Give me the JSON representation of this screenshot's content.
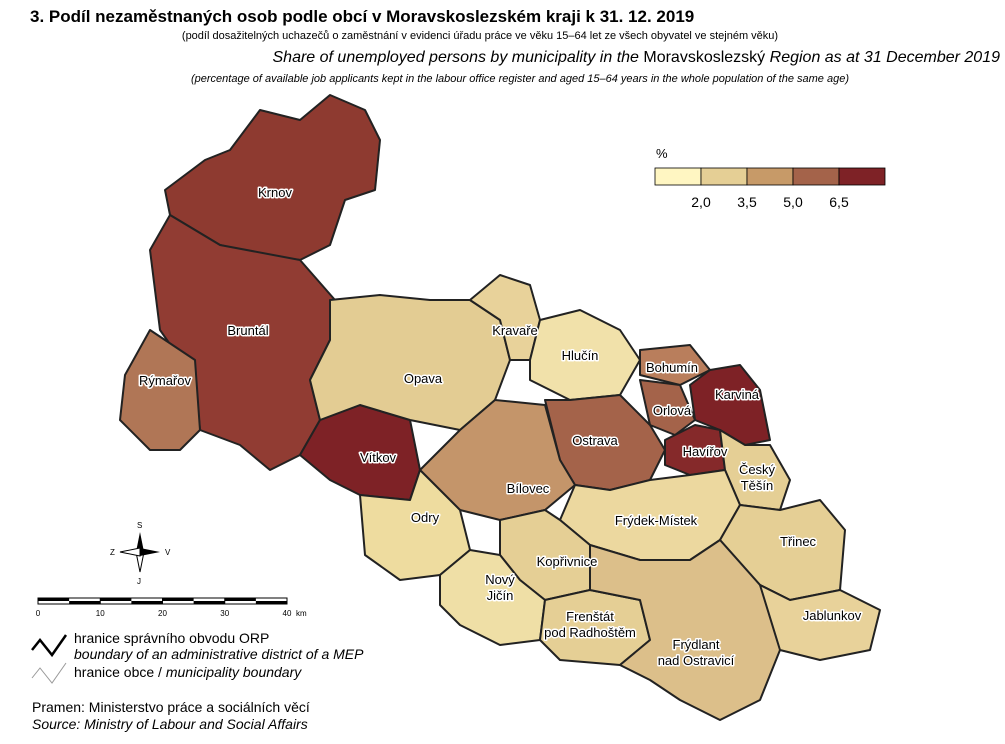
{
  "header": {
    "title": "3. Podíl nezaměstnaných osob podle obcí v Moravskoslezském kraji k 31. 12. 2019",
    "subtitle_cz": "(podíl dosažitelných uchazečů o zaměstnání v evidenci úřadu práce ve věku 15–64 let ze všech obyvatel ve stejném věku)",
    "subtitle_en": [
      "Share of unemployed persons by municipality in the ",
      "Moravskoslezský",
      " Region as at 31 December 2019"
    ],
    "note_en": "(percentage of available job applicants kept in the labour office register and aged 15–64 years in the whole population of the same age)"
  },
  "legend": {
    "unit": "%",
    "colors": [
      "#fff6c2",
      "#e5cf95",
      "#c79a68",
      "#a4634a",
      "#7e2226"
    ],
    "breaks": [
      {
        "value": 2.0,
        "label": "2,0"
      },
      {
        "value": 3.5,
        "label": "3,5"
      },
      {
        "value": 5.0,
        "label": "5,0"
      },
      {
        "value": 6.5,
        "label": "6,5"
      }
    ]
  },
  "districts": [
    [
      "Krnov"
    ],
    [
      "Bruntál"
    ],
    [
      "Rýmařov"
    ],
    [
      "Opava"
    ],
    [
      "Kravaře"
    ],
    [
      "Hlučín"
    ],
    [
      "Bohumín"
    ],
    [
      "Karviná"
    ],
    [
      "Orlová"
    ],
    [
      "Ostrava"
    ],
    [
      "Havířov"
    ],
    [
      "Český",
      "Těšín"
    ],
    [
      "Vítkov"
    ],
    [
      "Bílovec"
    ],
    [
      "Odry"
    ],
    [
      "Frýdek-Místek"
    ],
    [
      "Třinec"
    ],
    [
      "Kopřivnice"
    ],
    [
      "Nový",
      "Jičín"
    ],
    [
      "Frenštát",
      "pod Radhoštěm"
    ],
    [
      "Frýdlant",
      "nad Ostravicí"
    ],
    [
      "Jablunkov"
    ]
  ],
  "compass": {
    "north": "S",
    "west": "Z",
    "east": "V",
    "south": "J"
  },
  "scale": {
    "ticks": [
      0,
      10,
      20,
      30,
      40
    ],
    "unit": "km"
  },
  "boundaries": {
    "orp_cz": "hranice správního obvodu ORP",
    "orp_en": "boundary of an administrative district of a MEP",
    "municipality_cz": "hranice obce / ",
    "municipality_en": "municipality boundary"
  },
  "source": {
    "cz": "Pramen: Ministerstvo práce a sociálních věcí",
    "en": "Source: Ministry of Labour and Social Affairs"
  }
}
